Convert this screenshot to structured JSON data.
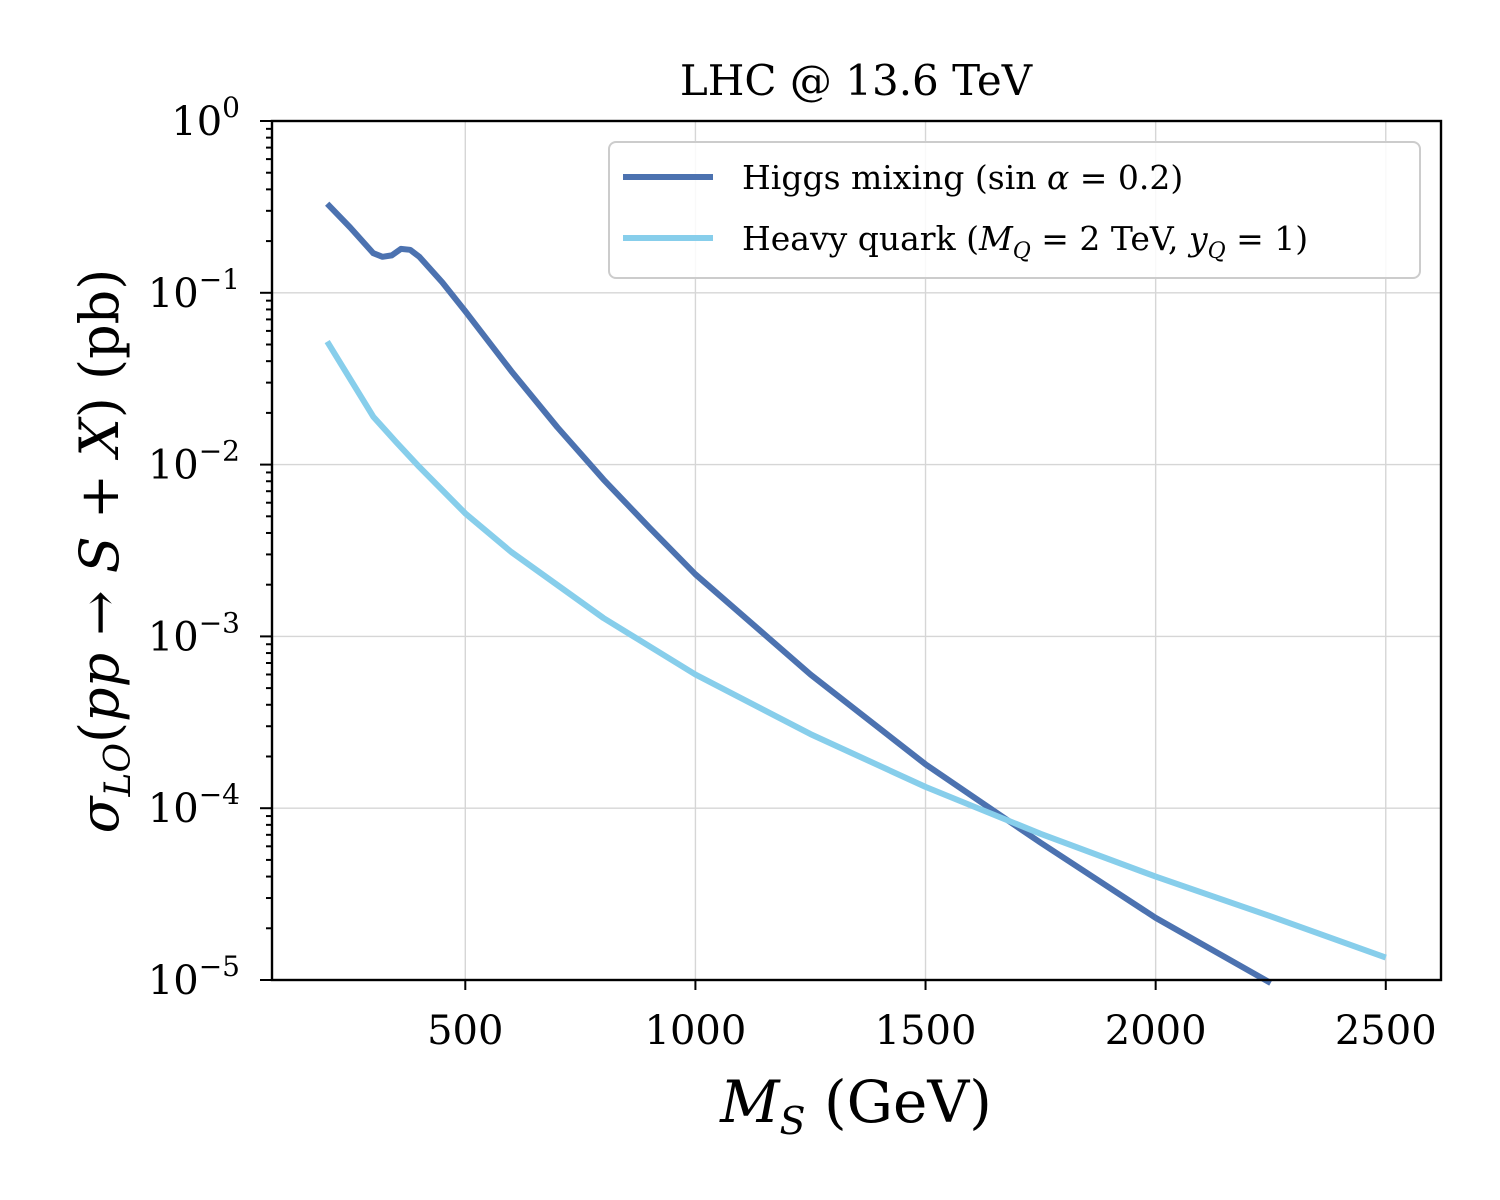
{
  "chart_data": {
    "type": "line",
    "title": "LHC @ 13.6 TeV",
    "xlabel": "M_S (GeV)",
    "ylabel": "σ_LO(pp → S + X) (pb)",
    "xlim": [
      80,
      2620
    ],
    "ylim": [
      1e-05,
      1
    ],
    "y_scale": "log",
    "grid": true,
    "legend_position": "top-right",
    "x_ticks": [
      500,
      1000,
      1500,
      2000,
      2500
    ],
    "x_tick_labels": [
      "500",
      "1000",
      "1500",
      "2000",
      "2500"
    ],
    "y_ticks": [
      {
        "value": 1,
        "base": "10",
        "exp": "0"
      },
      {
        "value": 0.1,
        "base": "10",
        "exp": "−1"
      },
      {
        "value": 0.01,
        "base": "10",
        "exp": "−2"
      },
      {
        "value": 0.001,
        "base": "10",
        "exp": "−3"
      },
      {
        "value": 0.0001,
        "base": "10",
        "exp": "−4"
      },
      {
        "value": 1e-05,
        "base": "10",
        "exp": "−5"
      }
    ],
    "series": [
      {
        "name": "Higgs mixing (sin α = 0.2)",
        "color": "#4c72b0",
        "x": [
          200,
          250,
          300,
          320,
          340,
          360,
          380,
          400,
          450,
          500,
          600,
          700,
          800,
          900,
          1000,
          1250,
          1500,
          1750,
          2000,
          2250
        ],
        "y": [
          0.33,
          0.24,
          0.17,
          0.162,
          0.165,
          0.18,
          0.178,
          0.162,
          0.115,
          0.078,
          0.035,
          0.0165,
          0.0082,
          0.0043,
          0.0023,
          0.0006,
          0.00018,
          6.3e-05,
          2.3e-05,
          9.6e-06
        ]
      },
      {
        "name": "Heavy quark (M_Q = 2 TeV, y_Q = 1)",
        "color": "#87ceeb",
        "x": [
          200,
          300,
          350,
          400,
          500,
          600,
          800,
          1000,
          1250,
          1500,
          1750,
          2000,
          2250,
          2500
        ],
        "y": [
          0.052,
          0.019,
          0.0135,
          0.0097,
          0.0052,
          0.0031,
          0.00128,
          0.0006,
          0.00027,
          0.000133,
          7.1e-05,
          4e-05,
          2.35e-05,
          1.35e-05
        ]
      }
    ]
  }
}
